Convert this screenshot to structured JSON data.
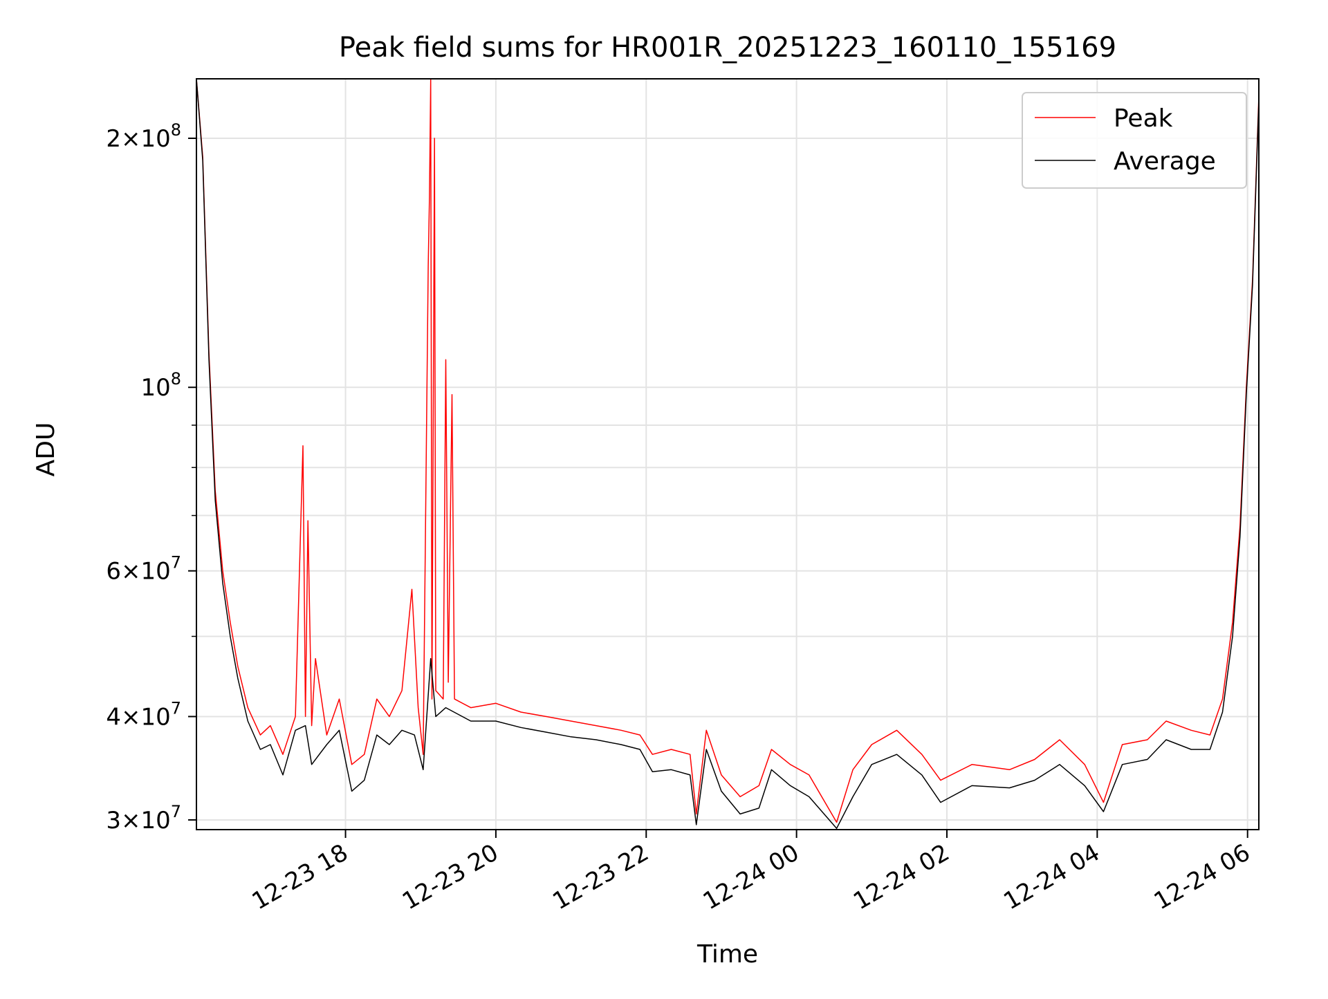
{
  "chart_data": {
    "type": "line",
    "title": "Peak field sums for HR001R_20251223_160110_155169",
    "xlabel": "Time",
    "ylabel": "ADU",
    "y_scale": "log",
    "ylim": [
      29200000,
      236000000
    ],
    "xlim": [
      "2025-12-23 16:01",
      "2025-12-24 06:09"
    ],
    "x_ticks": [
      {
        "t": "2025-12-23 18:00",
        "label": "12-23 18"
      },
      {
        "t": "2025-12-23 20:00",
        "label": "12-23 20"
      },
      {
        "t": "2025-12-23 22:00",
        "label": "12-23 22"
      },
      {
        "t": "2025-12-24 00:00",
        "label": "12-24 00"
      },
      {
        "t": "2025-12-24 02:00",
        "label": "12-24 02"
      },
      {
        "t": "2025-12-24 04:00",
        "label": "12-24 04"
      },
      {
        "t": "2025-12-24 06:00",
        "label": "12-24 06"
      }
    ],
    "y_major_ticks": [
      {
        "v": 30000000,
        "mant": "3",
        "exp": "7"
      },
      {
        "v": 40000000,
        "mant": "4",
        "exp": "7"
      },
      {
        "v": 60000000,
        "mant": "6",
        "exp": "7"
      },
      {
        "v": 100000000,
        "mant": "",
        "exp": "8"
      },
      {
        "v": 200000000,
        "mant": "2",
        "exp": "8"
      }
    ],
    "y_minor_ticks": [
      50000000,
      70000000,
      80000000,
      90000000
    ],
    "grid": true,
    "legend": {
      "position": "top-right"
    },
    "series": [
      {
        "name": "Peak",
        "color": "#ff0000",
        "points": [
          [
            "2025-12-23 16:01",
            236000000
          ],
          [
            "2025-12-23 16:06",
            190000000
          ],
          [
            "2025-12-23 16:11",
            110000000
          ],
          [
            "2025-12-23 16:16",
            75000000
          ],
          [
            "2025-12-23 16:22",
            60000000
          ],
          [
            "2025-12-23 16:28",
            52000000
          ],
          [
            "2025-12-23 16:34",
            46000000
          ],
          [
            "2025-12-23 16:42",
            41000000
          ],
          [
            "2025-12-23 16:52",
            38000000
          ],
          [
            "2025-12-23 17:00",
            39000000
          ],
          [
            "2025-12-23 17:10",
            36000000
          ],
          [
            "2025-12-23 17:20",
            40000000
          ],
          [
            "2025-12-23 17:26",
            85000000
          ],
          [
            "2025-12-23 17:28",
            40000000
          ],
          [
            "2025-12-23 17:30",
            69000000
          ],
          [
            "2025-12-23 17:33",
            39000000
          ],
          [
            "2025-12-23 17:36",
            47000000
          ],
          [
            "2025-12-23 17:45",
            38000000
          ],
          [
            "2025-12-23 17:55",
            42000000
          ],
          [
            "2025-12-23 18:05",
            35000000
          ],
          [
            "2025-12-23 18:15",
            36000000
          ],
          [
            "2025-12-23 18:25",
            42000000
          ],
          [
            "2025-12-23 18:35",
            40000000
          ],
          [
            "2025-12-23 18:45",
            43000000
          ],
          [
            "2025-12-23 18:53",
            57000000
          ],
          [
            "2025-12-23 18:58",
            41000000
          ],
          [
            "2025-12-23 19:02",
            36000000
          ],
          [
            "2025-12-23 19:06",
            140000000
          ],
          [
            "2025-12-23 19:07",
            170000000
          ],
          [
            "2025-12-23 19:08",
            236000000
          ],
          [
            "2025-12-23 19:09",
            42000000
          ],
          [
            "2025-12-23 19:11",
            200000000
          ],
          [
            "2025-12-23 19:12",
            43000000
          ],
          [
            "2025-12-23 19:18",
            42000000
          ],
          [
            "2025-12-23 19:20",
            108000000
          ],
          [
            "2025-12-23 19:22",
            44000000
          ],
          [
            "2025-12-23 19:25",
            98000000
          ],
          [
            "2025-12-23 19:27",
            42000000
          ],
          [
            "2025-12-23 19:40",
            41000000
          ],
          [
            "2025-12-23 20:00",
            41500000
          ],
          [
            "2025-12-23 20:20",
            40500000
          ],
          [
            "2025-12-23 20:40",
            40000000
          ],
          [
            "2025-12-23 21:00",
            39500000
          ],
          [
            "2025-12-23 21:20",
            39000000
          ],
          [
            "2025-12-23 21:40",
            38500000
          ],
          [
            "2025-12-23 21:55",
            38000000
          ],
          [
            "2025-12-23 22:05",
            36000000
          ],
          [
            "2025-12-23 22:20",
            36500000
          ],
          [
            "2025-12-23 22:35",
            36000000
          ],
          [
            "2025-12-23 22:40",
            30500000
          ],
          [
            "2025-12-23 22:48",
            38500000
          ],
          [
            "2025-12-23 23:00",
            34000000
          ],
          [
            "2025-12-23 23:15",
            32000000
          ],
          [
            "2025-12-23 23:30",
            33000000
          ],
          [
            "2025-12-23 23:40",
            36500000
          ],
          [
            "2025-12-23 23:55",
            35000000
          ],
          [
            "2025-12-24 00:10",
            34000000
          ],
          [
            "2025-12-24 00:32",
            29800000
          ],
          [
            "2025-12-24 00:45",
            34500000
          ],
          [
            "2025-12-24 01:00",
            37000000
          ],
          [
            "2025-12-24 01:20",
            38500000
          ],
          [
            "2025-12-24 01:40",
            36000000
          ],
          [
            "2025-12-24 01:55",
            33500000
          ],
          [
            "2025-12-24 02:20",
            35000000
          ],
          [
            "2025-12-24 02:50",
            34500000
          ],
          [
            "2025-12-24 03:10",
            35500000
          ],
          [
            "2025-12-24 03:30",
            37500000
          ],
          [
            "2025-12-24 03:50",
            35000000
          ],
          [
            "2025-12-24 04:05",
            31500000
          ],
          [
            "2025-12-24 04:20",
            37000000
          ],
          [
            "2025-12-24 04:40",
            37500000
          ],
          [
            "2025-12-24 04:55",
            39500000
          ],
          [
            "2025-12-24 05:15",
            38500000
          ],
          [
            "2025-12-24 05:30",
            38000000
          ],
          [
            "2025-12-24 05:40",
            42000000
          ],
          [
            "2025-12-24 05:48",
            52000000
          ],
          [
            "2025-12-24 05:54",
            68000000
          ],
          [
            "2025-12-24 05:59",
            100000000
          ],
          [
            "2025-12-24 06:04",
            135000000
          ],
          [
            "2025-12-24 06:09",
            225000000
          ]
        ]
      },
      {
        "name": "Average",
        "color": "#000000",
        "points": [
          [
            "2025-12-23 16:01",
            236000000
          ],
          [
            "2025-12-23 16:06",
            188000000
          ],
          [
            "2025-12-23 16:11",
            108000000
          ],
          [
            "2025-12-23 16:16",
            73000000
          ],
          [
            "2025-12-23 16:22",
            58000000
          ],
          [
            "2025-12-23 16:28",
            50000000
          ],
          [
            "2025-12-23 16:34",
            44500000
          ],
          [
            "2025-12-23 16:42",
            39500000
          ],
          [
            "2025-12-23 16:52",
            36500000
          ],
          [
            "2025-12-23 17:00",
            37000000
          ],
          [
            "2025-12-23 17:10",
            34000000
          ],
          [
            "2025-12-23 17:20",
            38500000
          ],
          [
            "2025-12-23 17:28",
            39000000
          ],
          [
            "2025-12-23 17:33",
            35000000
          ],
          [
            "2025-12-23 17:45",
            37000000
          ],
          [
            "2025-12-23 17:55",
            38500000
          ],
          [
            "2025-12-23 18:05",
            32500000
          ],
          [
            "2025-12-23 18:15",
            33500000
          ],
          [
            "2025-12-23 18:25",
            38000000
          ],
          [
            "2025-12-23 18:35",
            37000000
          ],
          [
            "2025-12-23 18:45",
            38500000
          ],
          [
            "2025-12-23 18:55",
            38000000
          ],
          [
            "2025-12-23 19:02",
            34500000
          ],
          [
            "2025-12-23 19:08",
            47000000
          ],
          [
            "2025-12-23 19:12",
            40000000
          ],
          [
            "2025-12-23 19:20",
            41000000
          ],
          [
            "2025-12-23 19:40",
            39500000
          ],
          [
            "2025-12-23 20:00",
            39500000
          ],
          [
            "2025-12-23 20:20",
            38800000
          ],
          [
            "2025-12-23 20:40",
            38300000
          ],
          [
            "2025-12-23 21:00",
            37800000
          ],
          [
            "2025-12-23 21:20",
            37500000
          ],
          [
            "2025-12-23 21:40",
            37000000
          ],
          [
            "2025-12-23 21:55",
            36500000
          ],
          [
            "2025-12-23 22:05",
            34300000
          ],
          [
            "2025-12-23 22:20",
            34500000
          ],
          [
            "2025-12-23 22:35",
            34000000
          ],
          [
            "2025-12-23 22:40",
            29600000
          ],
          [
            "2025-12-23 22:48",
            36500000
          ],
          [
            "2025-12-23 23:00",
            32500000
          ],
          [
            "2025-12-23 23:15",
            30500000
          ],
          [
            "2025-12-23 23:30",
            31000000
          ],
          [
            "2025-12-23 23:40",
            34500000
          ],
          [
            "2025-12-23 23:55",
            33000000
          ],
          [
            "2025-12-24 00:10",
            32000000
          ],
          [
            "2025-12-24 00:32",
            29300000
          ],
          [
            "2025-12-24 00:45",
            32000000
          ],
          [
            "2025-12-24 01:00",
            35000000
          ],
          [
            "2025-12-24 01:20",
            36000000
          ],
          [
            "2025-12-24 01:40",
            34000000
          ],
          [
            "2025-12-24 01:55",
            31500000
          ],
          [
            "2025-12-24 02:20",
            33000000
          ],
          [
            "2025-12-24 02:50",
            32800000
          ],
          [
            "2025-12-24 03:10",
            33500000
          ],
          [
            "2025-12-24 03:30",
            35000000
          ],
          [
            "2025-12-24 03:50",
            33000000
          ],
          [
            "2025-12-24 04:05",
            30700000
          ],
          [
            "2025-12-24 04:20",
            35000000
          ],
          [
            "2025-12-24 04:40",
            35500000
          ],
          [
            "2025-12-24 04:55",
            37500000
          ],
          [
            "2025-12-24 05:15",
            36500000
          ],
          [
            "2025-12-24 05:30",
            36500000
          ],
          [
            "2025-12-24 05:40",
            40500000
          ],
          [
            "2025-12-24 05:48",
            50000000
          ],
          [
            "2025-12-24 05:54",
            66000000
          ],
          [
            "2025-12-24 05:59",
            98000000
          ],
          [
            "2025-12-24 06:04",
            133000000
          ],
          [
            "2025-12-24 06:09",
            222000000
          ]
        ]
      }
    ]
  }
}
